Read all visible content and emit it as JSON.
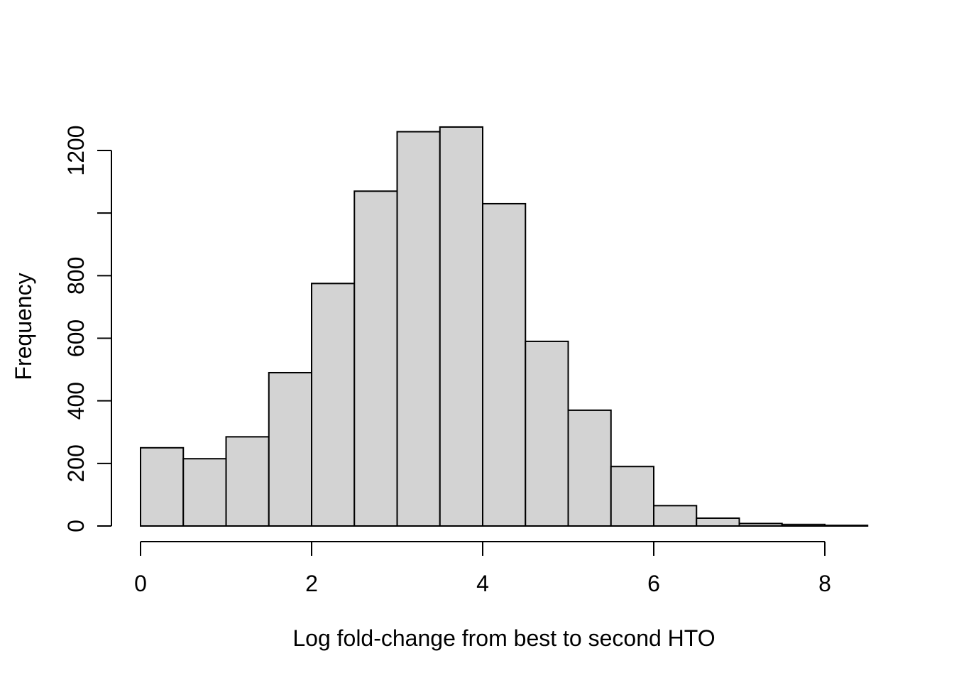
{
  "chart_data": {
    "type": "bar",
    "subtype": "histogram",
    "title": "",
    "xlabel": "Log fold-change from best to second HTO",
    "ylabel": "Frequency",
    "bin_width": 0.5,
    "bin_edges": [
      0,
      0.5,
      1,
      1.5,
      2,
      2.5,
      3,
      3.5,
      4,
      4.5,
      5,
      5.5,
      6,
      6.5,
      7,
      7.5,
      8,
      8.5
    ],
    "counts": [
      250,
      215,
      285,
      490,
      775,
      1070,
      1260,
      1275,
      1030,
      590,
      370,
      190,
      65,
      25,
      8,
      5,
      2
    ],
    "xlim": [
      0,
      8.5
    ],
    "ylim": [
      0,
      1200
    ],
    "grid": false,
    "legend": "none",
    "x_axis": {
      "ticks": [
        {
          "v": 0,
          "t": "0"
        },
        {
          "v": 2,
          "t": "2"
        },
        {
          "v": 4,
          "t": "4"
        },
        {
          "v": 6,
          "t": "6"
        },
        {
          "v": 8,
          "t": "8"
        }
      ]
    },
    "y_axis": {
      "labeled_ticks": [
        {
          "v": 0,
          "t": "0"
        },
        {
          "v": 200,
          "t": "200"
        },
        {
          "v": 400,
          "t": "400"
        },
        {
          "v": 600,
          "t": "600"
        },
        {
          "v": 800,
          "t": "800"
        },
        {
          "v": 1200,
          "t": "1200"
        }
      ],
      "unlabeled_ticks": [
        1000
      ]
    },
    "colors": {
      "bar_fill": "#d3d3d3",
      "bar_stroke": "#000000",
      "axis": "#000000",
      "background": "#ffffff"
    }
  }
}
